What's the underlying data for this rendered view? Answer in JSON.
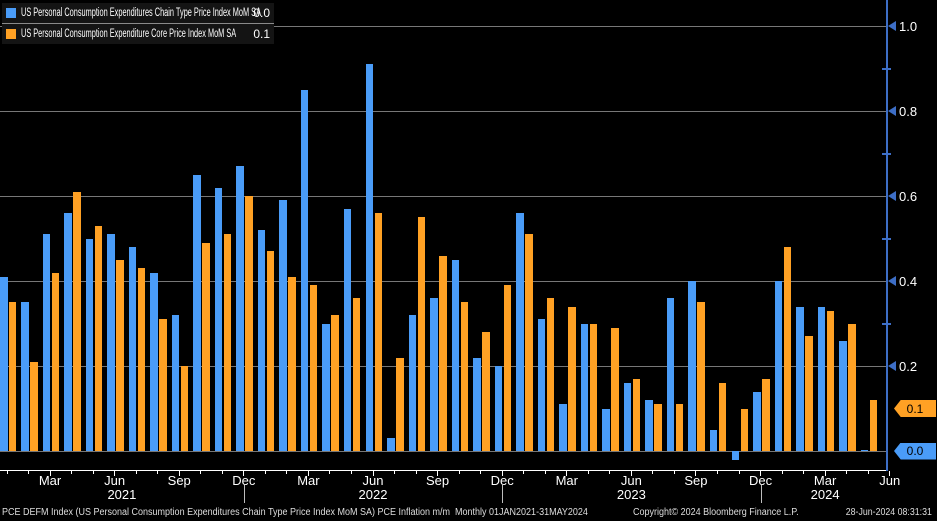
{
  "legend": {
    "items": [
      {
        "label": "US Personal Consumption Expenditures Chain Type Price Index MoM SA",
        "value": "0.0",
        "color": "#4A9CF8"
      },
      {
        "label": "US Personal Consumption Expenditure Core Price Index MoM SA",
        "value": "0.1",
        "color": "#FFA124"
      }
    ]
  },
  "colors": {
    "background": "#000000",
    "headline_blue": "#4A9CF8",
    "core_orange": "#FFA124",
    "axis": "#3D6EC6",
    "gridline": "#777777",
    "tick_text": "#FFFFFF",
    "badge_text": "#000000"
  },
  "y_axis": {
    "major_ticks": [
      "1.0",
      "0.8",
      "0.6",
      "0.4",
      "0.2"
    ],
    "badges": [
      {
        "label": "0.1",
        "color": "#FFA124"
      },
      {
        "label": "0.0",
        "color": "#4A9CF8"
      }
    ]
  },
  "x_axis": {
    "quarter_labels": [
      "Mar",
      "Jun",
      "Sep",
      "Dec",
      "Mar",
      "Jun",
      "Sep",
      "Dec",
      "Mar",
      "Jun",
      "Sep",
      "Dec",
      "Mar",
      "Jun"
    ],
    "year_labels": [
      "2021",
      "2022",
      "2023",
      "2024"
    ]
  },
  "footer": {
    "left": "PCE DEFM Index (US Personal Consumption Expenditures Chain Type Price Index MoM SA) PCE Inflation m/m  Monthly 01JAN2021-31MAY2024",
    "center": "Copyright© 2024 Bloomberg Finance L.P.",
    "right": "28-Jun-2024 08:31:31"
  },
  "chart_data": {
    "type": "bar",
    "title": "",
    "xlabel": "",
    "ylabel": "",
    "ylim": [
      -0.05,
      1.02
    ],
    "yticks": [
      0.0,
      0.2,
      0.4,
      0.6,
      0.8,
      1.0
    ],
    "grid": true,
    "legend_position": "top-left",
    "x": [
      "2021-01",
      "2021-02",
      "2021-03",
      "2021-04",
      "2021-05",
      "2021-06",
      "2021-07",
      "2021-08",
      "2021-09",
      "2021-10",
      "2021-11",
      "2021-12",
      "2022-01",
      "2022-02",
      "2022-03",
      "2022-04",
      "2022-05",
      "2022-06",
      "2022-07",
      "2022-08",
      "2022-09",
      "2022-10",
      "2022-11",
      "2022-12",
      "2023-01",
      "2023-02",
      "2023-03",
      "2023-04",
      "2023-05",
      "2023-06",
      "2023-07",
      "2023-08",
      "2023-09",
      "2023-10",
      "2023-11",
      "2023-12",
      "2024-01",
      "2024-02",
      "2024-03",
      "2024-04",
      "2024-05"
    ],
    "series": [
      {
        "name": "US Personal Consumption Expenditures Chain Type Price Index MoM SA",
        "color": "#4A9CF8",
        "last_value": 0.0,
        "values": [
          0.41,
          0.35,
          0.51,
          0.56,
          0.5,
          0.51,
          0.48,
          0.42,
          0.32,
          0.65,
          0.62,
          0.67,
          0.52,
          0.59,
          0.85,
          0.3,
          0.57,
          0.91,
          0.03,
          0.32,
          0.36,
          0.45,
          0.22,
          0.2,
          0.56,
          0.31,
          0.11,
          0.3,
          0.1,
          0.16,
          0.12,
          0.36,
          0.4,
          0.05,
          -0.02,
          0.14,
          0.4,
          0.34,
          0.34,
          0.26,
          0.0
        ]
      },
      {
        "name": "US Personal Consumption Expenditure Core Price Index MoM SA",
        "color": "#FFA124",
        "last_value": 0.1,
        "values": [
          0.35,
          0.21,
          0.42,
          0.61,
          0.53,
          0.45,
          0.43,
          0.31,
          0.2,
          0.49,
          0.51,
          0.6,
          0.47,
          0.41,
          0.39,
          0.32,
          0.36,
          0.56,
          0.22,
          0.55,
          0.46,
          0.35,
          0.28,
          0.39,
          0.51,
          0.36,
          0.34,
          0.3,
          0.29,
          0.17,
          0.11,
          0.11,
          0.35,
          0.16,
          0.1,
          0.17,
          0.48,
          0.27,
          0.33,
          0.3,
          0.12
        ]
      }
    ]
  }
}
